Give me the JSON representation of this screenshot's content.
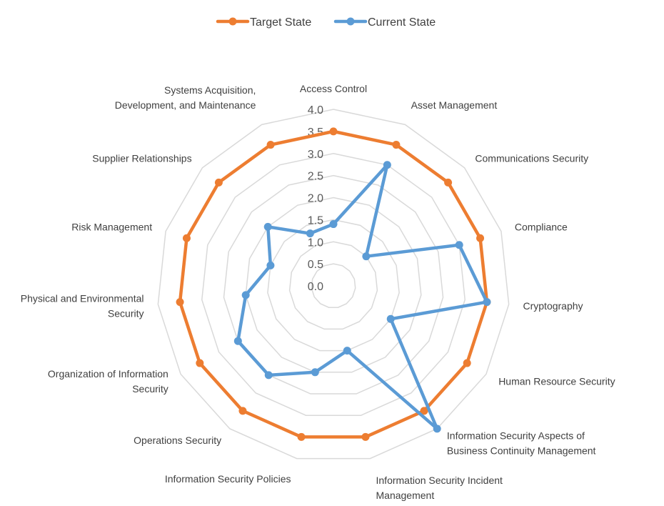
{
  "chart_data": {
    "type": "radar",
    "categories": [
      "Access Control",
      "Asset Management",
      "Communications Security",
      "Compliance",
      "Cryptography",
      "Human Resource Security",
      "Information Security Aspects of Business Continuity Management",
      "Information Security Incident Management",
      "Information Security Policies",
      "Operations Security",
      "Organization of Information Security",
      "Physical and Environmental Security",
      "Risk Management",
      "Supplier Relationships",
      "Systems Acquisition, Development, and Maintenance"
    ],
    "category_label_lines": [
      [
        "Access Control"
      ],
      [
        "Asset Management"
      ],
      [
        "Communications Security"
      ],
      [
        "Compliance"
      ],
      [
        "Cryptography"
      ],
      [
        "Human Resource Security"
      ],
      [
        "Information Security Aspects of",
        "Business Continuity Management"
      ],
      [
        "Information Security Incident",
        "Management"
      ],
      [
        "Information Security Policies"
      ],
      [
        "Operations Security"
      ],
      [
        "Organization of Information",
        "Security"
      ],
      [
        "Physical and Environmental",
        "Security"
      ],
      [
        "Risk Management"
      ],
      [
        "Supplier Relationships"
      ],
      [
        "Systems Acquisition,",
        "Development, and Maintenance"
      ]
    ],
    "series": [
      {
        "name": "Target State",
        "color": "#ED7D31",
        "values": [
          3.5,
          3.5,
          3.5,
          3.5,
          3.5,
          3.5,
          3.5,
          3.5,
          3.5,
          3.5,
          3.5,
          3.5,
          3.5,
          3.5,
          3.5
        ]
      },
      {
        "name": "Current State",
        "color": "#5B9BD5",
        "values": [
          1.4,
          3.0,
          1.0,
          3.0,
          3.5,
          1.5,
          4.0,
          1.5,
          2.0,
          2.5,
          2.5,
          2.0,
          1.5,
          2.0,
          1.3
        ]
      }
    ],
    "rlim": [
      0,
      4
    ],
    "ticks": [
      "0.0",
      "0.5",
      "1.0",
      "1.5",
      "2.0",
      "2.5",
      "3.0",
      "3.5",
      "4.0"
    ],
    "grid": true,
    "legend_position": "top",
    "grid_color": "#D9D9D9"
  }
}
